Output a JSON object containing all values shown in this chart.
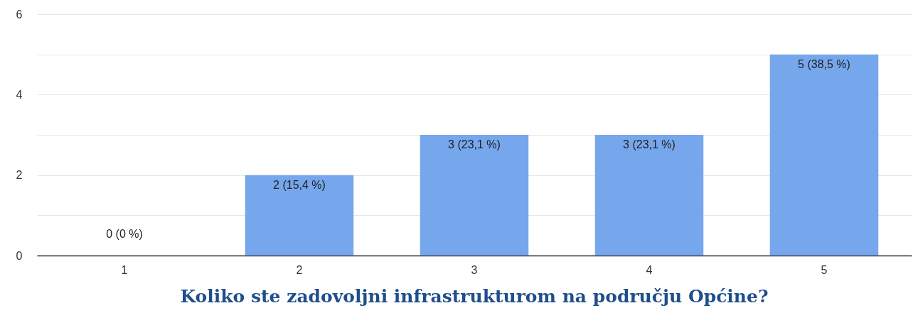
{
  "chart_data": {
    "type": "bar",
    "title": "Koliko ste zadovoljni infrastrukturom na području Općine?",
    "categories": [
      "1",
      "2",
      "3",
      "4",
      "5"
    ],
    "values": [
      0,
      2,
      3,
      3,
      5
    ],
    "value_labels": [
      "0 (0 %)",
      "2 (15,4 %)",
      "3 (23,1 %)",
      "3 (23,1 %)",
      "5 (38,5 %)"
    ],
    "color": "#76a7ec",
    "ylim": [
      0,
      6
    ],
    "yticks": [
      0,
      {
        "value": 1,
        "label": null
      },
      2,
      {
        "value": 3,
        "label": null
      },
      4,
      {
        "value": 5,
        "label": null
      },
      6
    ],
    "grid": "y"
  }
}
